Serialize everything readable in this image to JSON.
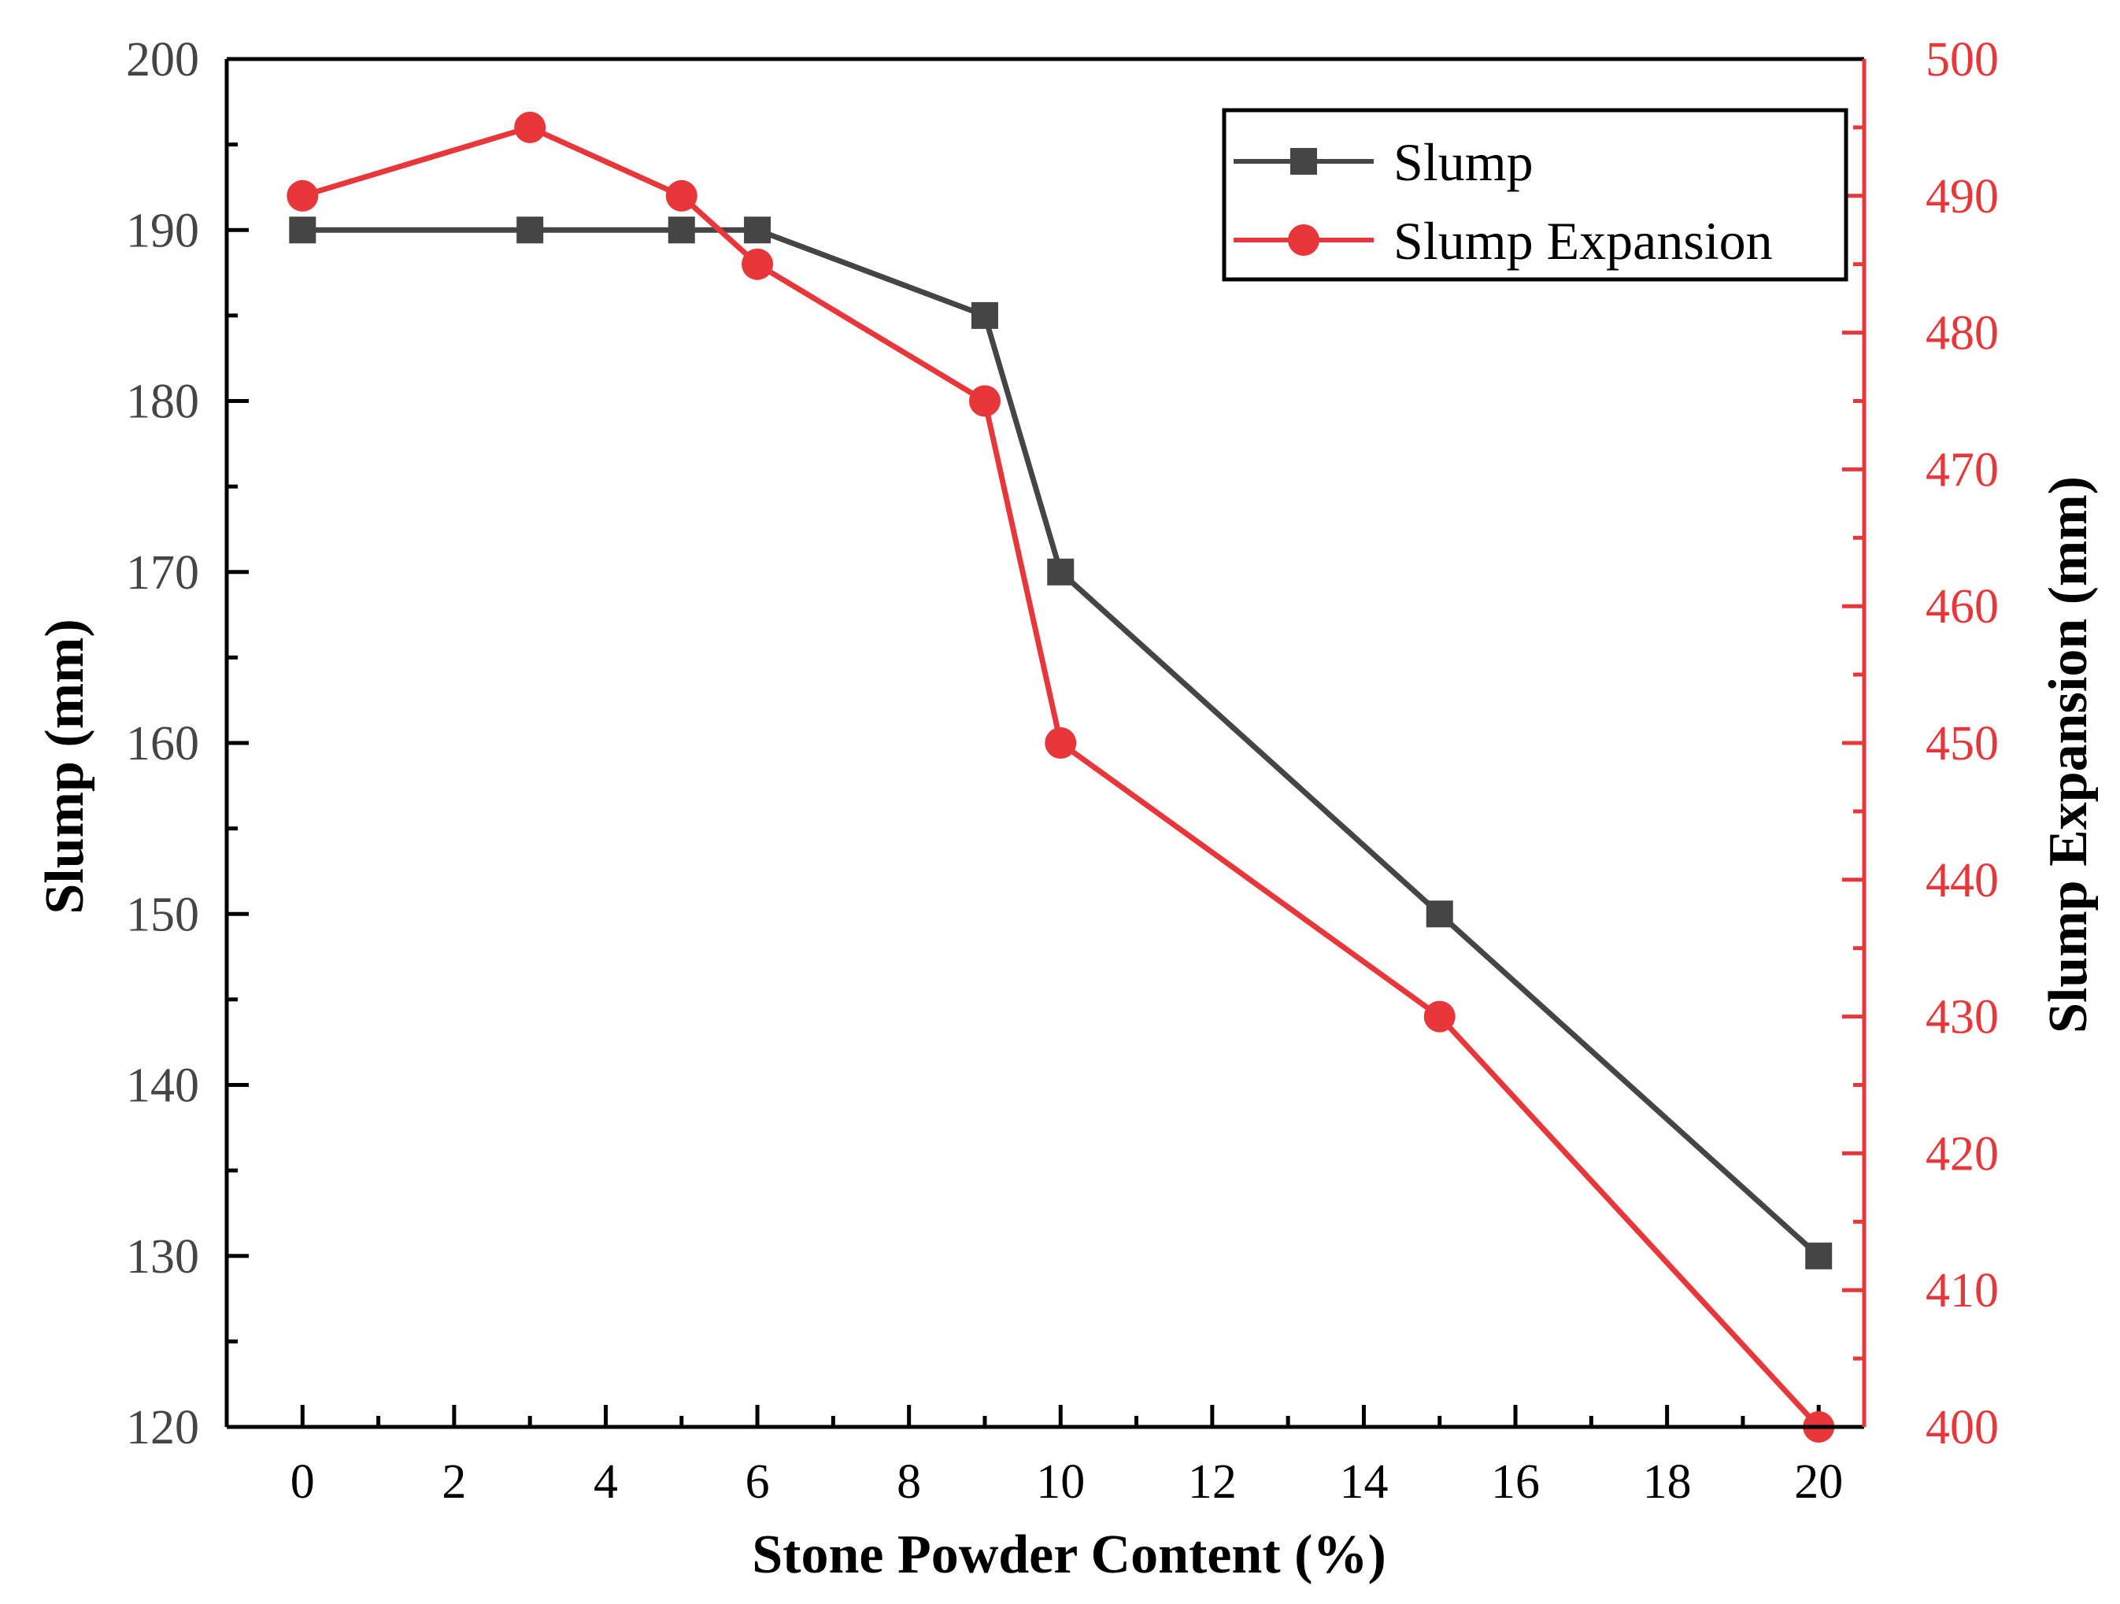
{
  "chart_data": {
    "type": "line",
    "xlabel": "Stone Powder Content (%)",
    "ylabel": "Slump (mm)",
    "y2label": "Slump Expansion (mm)",
    "xlim": [
      -1,
      20.6
    ],
    "ylim": [
      120,
      200
    ],
    "y2lim": [
      400,
      500
    ],
    "xticks": [
      0,
      2,
      4,
      6,
      8,
      10,
      12,
      14,
      16,
      18,
      20
    ],
    "yticks": [
      120,
      130,
      140,
      150,
      160,
      170,
      180,
      190,
      200
    ],
    "y2ticks": [
      400,
      410,
      420,
      430,
      440,
      450,
      460,
      470,
      480,
      490,
      500
    ],
    "legend_position": "top-right",
    "series": [
      {
        "name": "Slump",
        "axis": "left",
        "marker": "square",
        "color": "#454545",
        "x": [
          0,
          3,
          5,
          6,
          9,
          10,
          15,
          20
        ],
        "values": [
          190,
          190,
          190,
          190,
          185,
          170,
          150,
          130
        ]
      },
      {
        "name": "Slump Expansion",
        "axis": "right",
        "marker": "circle",
        "color": "#e8373a",
        "x": [
          0,
          3,
          5,
          6,
          9,
          10,
          15,
          20
        ],
        "values": [
          490,
          495,
          490,
          485,
          475,
          450,
          430,
          400
        ]
      }
    ]
  }
}
